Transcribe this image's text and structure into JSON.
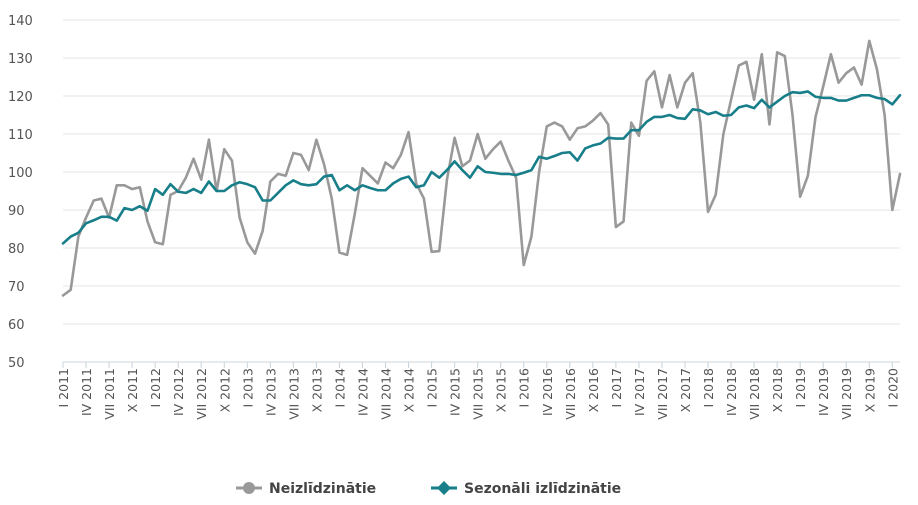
{
  "chart_data": {
    "type": "line",
    "ylim": [
      50,
      140
    ],
    "yticks": [
      50,
      60,
      70,
      80,
      90,
      100,
      110,
      120,
      130,
      140
    ],
    "x_labels": [
      "I 2011",
      "IV 2011",
      "VII 2011",
      "X 2011",
      "I 2012",
      "IV 2012",
      "VII 2012",
      "X 2012",
      "I 2013",
      "IV 2013",
      "VII 2013",
      "X 2013",
      "I 2014",
      "IV 2014",
      "VII 2014",
      "X 2014",
      "I 2015",
      "IV 2015",
      "VII 2015",
      "X 2015",
      "I 2016",
      "IV 2016",
      "VII 2016",
      "X 2016",
      "I 2017",
      "IV 2017",
      "VII 2017",
      "X 2017",
      "I 2018",
      "IV 2018",
      "VII 2018",
      "X 2018",
      "I 2019",
      "IV 2019",
      "VII 2019",
      "X 2019",
      "I 2020"
    ],
    "grid": true,
    "legend_position": "bottom-center",
    "series": [
      {
        "name": "Neizlīdzinātie",
        "color": "#999999",
        "values": [
          67.5,
          69,
          83,
          88,
          92.5,
          93,
          88,
          96.5,
          96.5,
          95.5,
          96,
          87,
          81.5,
          81,
          94,
          95,
          98.5,
          103.5,
          98,
          108.5,
          95,
          106,
          103,
          88,
          81.5,
          78.5,
          84.5,
          97.5,
          99.5,
          99,
          105,
          104.5,
          100.5,
          108.5,
          102,
          93,
          78.8,
          78.2,
          89,
          101,
          99,
          97,
          102.5,
          101,
          104.5,
          110.5,
          97,
          93,
          79,
          79.2,
          98,
          109,
          101.5,
          103,
          110,
          103.5,
          106,
          108,
          103,
          98.5,
          75.5,
          83,
          100,
          112,
          113,
          112,
          108.5,
          111.5,
          112,
          113.5,
          115.5,
          112.5,
          85.5,
          87,
          113,
          109.5,
          124,
          126.5,
          117,
          125.5,
          117,
          123.5,
          126,
          113,
          89.5,
          94,
          110,
          119,
          128,
          129,
          119,
          131,
          112.5,
          131.5,
          130.5,
          115,
          93.5,
          99,
          114.5,
          122.5,
          131,
          123.5,
          126,
          127.5,
          123,
          134.5,
          127,
          115,
          90,
          99.5
        ]
      },
      {
        "name": "Sezonāli izlīdzinātie",
        "color": "#177e8a",
        "values": [
          81.2,
          83,
          84,
          86.5,
          87.3,
          88.2,
          88.2,
          87.2,
          90.5,
          90,
          91,
          89.8,
          95.5,
          94,
          96.8,
          94.8,
          94.5,
          95.5,
          94.5,
          97.5,
          95,
          95,
          96.5,
          97.3,
          96.8,
          96,
          92.5,
          92.5,
          94.5,
          96.5,
          97.8,
          96.8,
          96.5,
          96.8,
          98.8,
          99.2,
          95.2,
          96.5,
          95.2,
          96.5,
          95.8,
          95.2,
          95.2,
          97,
          98.2,
          98.8,
          96,
          96.5,
          100,
          98.5,
          100.5,
          102.8,
          100.5,
          98.5,
          101.5,
          100,
          99.8,
          99.5,
          99.5,
          99.2,
          99.8,
          100.5,
          104,
          103.5,
          104.2,
          105,
          105.2,
          103,
          106.2,
          107,
          107.5,
          109,
          108.8,
          108.8,
          111,
          111,
          113.2,
          114.5,
          114.5,
          115,
          114.2,
          114,
          116.5,
          116.2,
          115.2,
          115.8,
          114.8,
          115,
          117,
          117.5,
          116.8,
          119,
          117,
          118.5,
          120,
          121,
          120.8,
          121.2,
          119.8,
          119.5,
          119.5,
          118.8,
          118.8,
          119.5,
          120.2,
          120.2,
          119.5,
          119.2,
          117.8,
          120.2
        ]
      }
    ]
  }
}
